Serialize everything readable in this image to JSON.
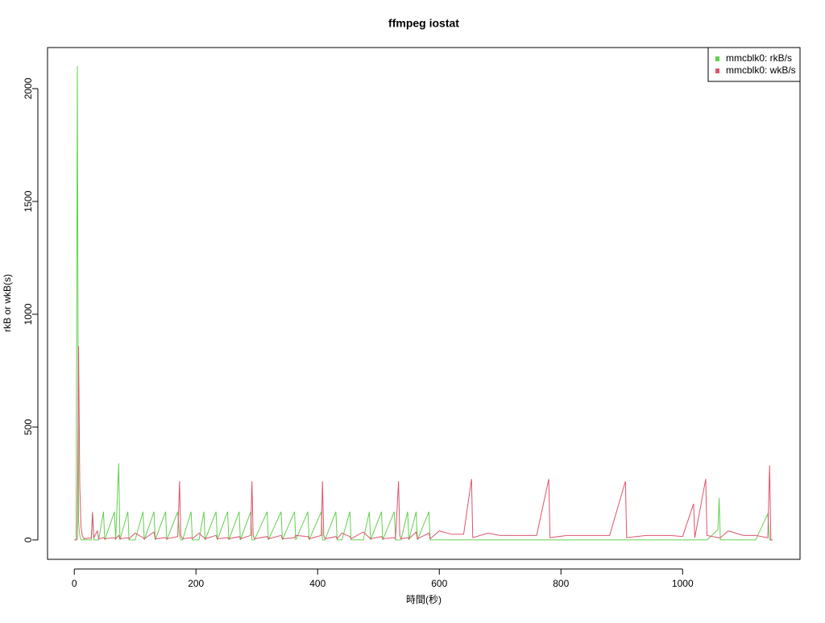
{
  "chart_data": {
    "type": "line",
    "title": "ffmpeg iostat",
    "x_label": "時間(秒)",
    "y_label": "rkB or wkB(s)",
    "x": [
      0,
      3,
      5,
      7,
      9,
      11,
      13,
      16,
      28,
      30,
      32,
      38,
      40,
      48,
      50,
      66,
      68,
      73,
      75,
      88,
      90,
      100,
      113,
      115,
      131,
      133,
      150,
      152,
      170,
      173,
      175,
      178,
      192,
      194,
      205,
      213,
      215,
      233,
      235,
      252,
      254,
      271,
      273,
      290,
      292,
      294,
      296,
      317,
      319,
      340,
      342,
      362,
      364,
      384,
      386,
      406,
      408,
      410,
      412,
      430,
      432,
      440,
      453,
      455,
      475,
      485,
      487,
      505,
      507,
      526,
      528,
      533,
      535,
      537,
      548,
      550,
      562,
      564,
      583,
      585,
      600,
      620,
      640,
      653,
      655,
      680,
      700,
      730,
      760,
      780,
      782,
      810,
      850,
      880,
      906,
      908,
      940,
      980,
      1000,
      1018,
      1020,
      1038,
      1040,
      1058,
      1060,
      1062,
      1075,
      1100,
      1120,
      1140,
      1143,
      1145,
      1148
    ],
    "series": [
      {
        "name": "mmcblk0: rkB/s",
        "color": "#61d04f",
        "values": [
          0,
          0,
          2100,
          80,
          20,
          0,
          0,
          0,
          0,
          125,
          0,
          0,
          0,
          125,
          0,
          125,
          0,
          340,
          0,
          125,
          0,
          0,
          125,
          0,
          125,
          0,
          125,
          0,
          125,
          20,
          0,
          0,
          125,
          0,
          0,
          125,
          0,
          125,
          0,
          125,
          0,
          125,
          0,
          125,
          0,
          0,
          0,
          125,
          0,
          125,
          0,
          125,
          0,
          125,
          0,
          125,
          0,
          0,
          0,
          125,
          0,
          0,
          125,
          0,
          0,
          125,
          0,
          125,
          0,
          125,
          0,
          0,
          0,
          0,
          125,
          0,
          125,
          0,
          125,
          0,
          0,
          0,
          0,
          0,
          0,
          0,
          0,
          0,
          0,
          0,
          0,
          0,
          0,
          0,
          0,
          0,
          0,
          0,
          0,
          0,
          0,
          0,
          0,
          45,
          185,
          0,
          0,
          0,
          0,
          115,
          0,
          0,
          0
        ]
      },
      {
        "name": "mmcblk0: wkB/s",
        "color": "#df536b",
        "values": [
          0,
          0,
          5,
          860,
          240,
          60,
          20,
          5,
          10,
          120,
          10,
          40,
          5,
          10,
          5,
          10,
          5,
          20,
          5,
          10,
          5,
          30,
          10,
          5,
          35,
          5,
          10,
          5,
          15,
          260,
          20,
          5,
          10,
          5,
          30,
          10,
          5,
          20,
          5,
          10,
          5,
          15,
          5,
          20,
          260,
          20,
          5,
          15,
          5,
          20,
          5,
          10,
          20,
          15,
          5,
          20,
          260,
          20,
          5,
          15,
          5,
          30,
          15,
          5,
          35,
          10,
          5,
          15,
          5,
          10,
          5,
          260,
          20,
          5,
          10,
          5,
          35,
          5,
          30,
          5,
          40,
          25,
          25,
          270,
          10,
          30,
          20,
          20,
          20,
          270,
          10,
          20,
          20,
          20,
          260,
          10,
          20,
          20,
          15,
          160,
          10,
          270,
          20,
          10,
          10,
          10,
          40,
          20,
          20,
          10,
          330,
          0,
          0
        ]
      }
    ],
    "xlim": [
      -44,
      1193
    ],
    "ylim": [
      -86,
      2182
    ],
    "xticks": [
      0,
      200,
      400,
      600,
      800,
      1000
    ],
    "yticks": [
      0,
      500,
      1000,
      1500,
      2000
    ],
    "legend": "top-right"
  }
}
